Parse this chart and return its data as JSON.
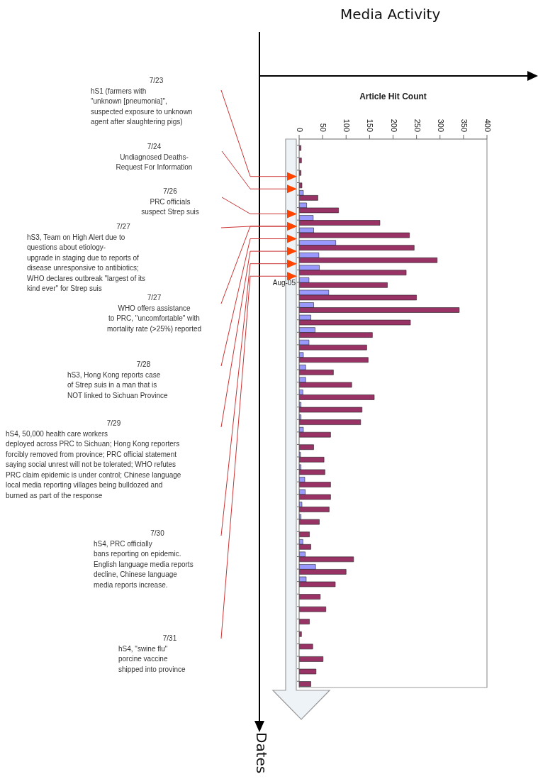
{
  "chart_data": {
    "type": "bar",
    "orientation": "horizontal",
    "title": "Media Activity",
    "xlabel": "Article Hit Count",
    "ylabel": "Dates",
    "categories": [
      null,
      null,
      null,
      null,
      null,
      null,
      null,
      null,
      null,
      null,
      null,
      "Aug-05",
      null,
      null,
      null,
      null,
      null,
      null,
      null,
      null,
      null,
      null,
      null,
      null,
      null,
      null,
      null,
      null,
      null,
      null,
      null,
      null,
      null,
      null,
      null,
      null,
      null,
      null,
      null,
      null,
      null,
      null,
      null,
      null
    ],
    "series": [
      {
        "color": "#9999ff",
        "values": [
          0,
          0,
          0,
          0,
          9,
          16,
          30,
          31,
          78,
          42,
          43,
          21,
          63,
          31,
          25,
          34,
          21,
          9,
          14,
          14,
          8,
          4,
          4,
          9,
          0,
          3,
          4,
          12,
          13,
          6,
          4,
          null,
          8,
          13,
          35,
          15,
          0,
          0,
          0,
          0,
          0,
          0,
          0,
          0
        ]
      },
      {
        "color": "#993366",
        "values": [
          4,
          5,
          4,
          6,
          40,
          84,
          172,
          235,
          245,
          294,
          228,
          188,
          250,
          341,
          237,
          156,
          144,
          147,
          73,
          112,
          160,
          134,
          131,
          67,
          31,
          53,
          55,
          67,
          67,
          64,
          43,
          22,
          25,
          116,
          100,
          77,
          45,
          57,
          22,
          5,
          29,
          51,
          36,
          25
        ]
      }
    ],
    "xlim": [
      0,
      400
    ],
    "xticks": [
      0,
      50,
      100,
      150,
      200,
      250,
      300,
      350,
      400
    ],
    "annotations": [
      "7/23\nhS1 (farmers with\n\"unknown [pneumonia]\",\nsuspected exposure to unknown\nagent after slaughtering pigs)",
      "7/24\nUndiagnosed Deaths-\nRequest For Information",
      "7/26\nPRC officials\nsuspect Strep suis",
      "7/27\nhS3, Team on High Alert due to\nquestions about etiology-\nupgrade in staging due to reports of\ndisease unresponsive to antibiotics;\nWHO declares outbreak \"largest of its\nkind ever\" for Strep suis",
      "7/27\nWHO offers assistance\nto PRC, \"uncomfortable\" with\nmortality rate (>25%) reported",
      "7/28\nhS3, Hong Kong reports case\nof Strep suis in a man that is\nNOT linked to Sichuan Province",
      "7/29\nhS4, 50,000 health care workers\ndeployed across PRC to Sichuan; Hong Kong reporters\nforcibly removed from province; PRC official statement\nsaying social unrest will not be tolerated; WHO refutes\nPRC claim epidemic is under control; Chinese language\nlocal media reporting villages being bulldozed and\nburned as part of the response",
      "7/30\nhS4, PRC officially\nbans reporting on epidemic.\nEnglish language media reports\ndecline, Chinese language\nmedia reports increase.",
      "7/31\nhS4, \"swine flu\"\nporcine vaccine\nshipped into province"
    ]
  }
}
